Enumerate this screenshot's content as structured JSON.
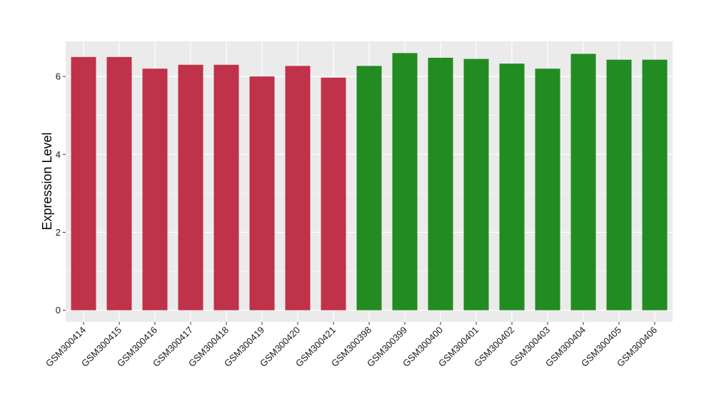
{
  "chart_data": {
    "type": "bar",
    "title": "",
    "xlabel": "",
    "ylabel": "Expression Level",
    "ylim": [
      -0.3,
      6.9
    ],
    "yticks": [
      0,
      2,
      4,
      6
    ],
    "ytick_labels": [
      "0",
      "2",
      "4",
      "6"
    ],
    "grid": true,
    "legend": "none",
    "colors": {
      "panel_background": "#ebebeb",
      "grid": "#ffffff",
      "group_a": "#c0314a",
      "group_b": "#228b22"
    },
    "categories": [
      "GSM300414",
      "GSM300415",
      "GSM300416",
      "GSM300417",
      "GSM300418",
      "GSM300419",
      "GSM300420",
      "GSM300421",
      "GSM300398",
      "GSM300399",
      "GSM300400",
      "GSM300401",
      "GSM300402",
      "GSM300403",
      "GSM300404",
      "GSM300405",
      "GSM300406"
    ],
    "values": [
      6.5,
      6.5,
      6.2,
      6.3,
      6.3,
      6.0,
      6.27,
      5.97,
      6.27,
      6.6,
      6.48,
      6.45,
      6.33,
      6.2,
      6.58,
      6.43,
      6.43
    ],
    "bar_colors": [
      "#c0314a",
      "#c0314a",
      "#c0314a",
      "#c0314a",
      "#c0314a",
      "#c0314a",
      "#c0314a",
      "#c0314a",
      "#228b22",
      "#228b22",
      "#228b22",
      "#228b22",
      "#228b22",
      "#228b22",
      "#228b22",
      "#228b22",
      "#228b22"
    ]
  }
}
